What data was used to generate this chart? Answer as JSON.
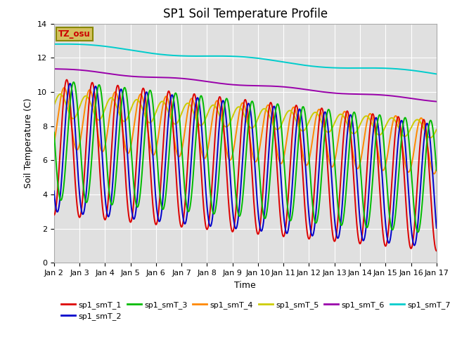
{
  "title": "SP1 Soil Temperature Profile",
  "xlabel": "Time",
  "ylabel": "Soil Temperature (C)",
  "ylim": [
    0,
    14
  ],
  "yticks": [
    0,
    2,
    4,
    6,
    8,
    10,
    12,
    14
  ],
  "xtick_labels": [
    "Jan 2",
    "Jan 3",
    "Jan 4",
    "Jan 5",
    "Jan 6",
    "Jan 7",
    "Jan 8",
    "Jan 9",
    "Jan 10",
    "Jan 11",
    "Jan 12",
    "Jan 13",
    "Jan 14",
    "Jan 15",
    "Jan 16",
    "Jan 17"
  ],
  "legend_label": "TZ_osu",
  "colors": {
    "sp1_smT_1": "#dd0000",
    "sp1_smT_2": "#0000cc",
    "sp1_smT_3": "#00bb00",
    "sp1_smT_4": "#ff8800",
    "sp1_smT_5": "#cccc00",
    "sp1_smT_6": "#9900aa",
    "sp1_smT_7": "#00cccc"
  },
  "background_color": "#e0e0e0",
  "title_fontsize": 12,
  "axis_label_fontsize": 9,
  "tick_fontsize": 8,
  "legend_box_facecolor": "#d4c060",
  "legend_box_edgecolor": "#888800",
  "legend_text_color": "#cc0000"
}
